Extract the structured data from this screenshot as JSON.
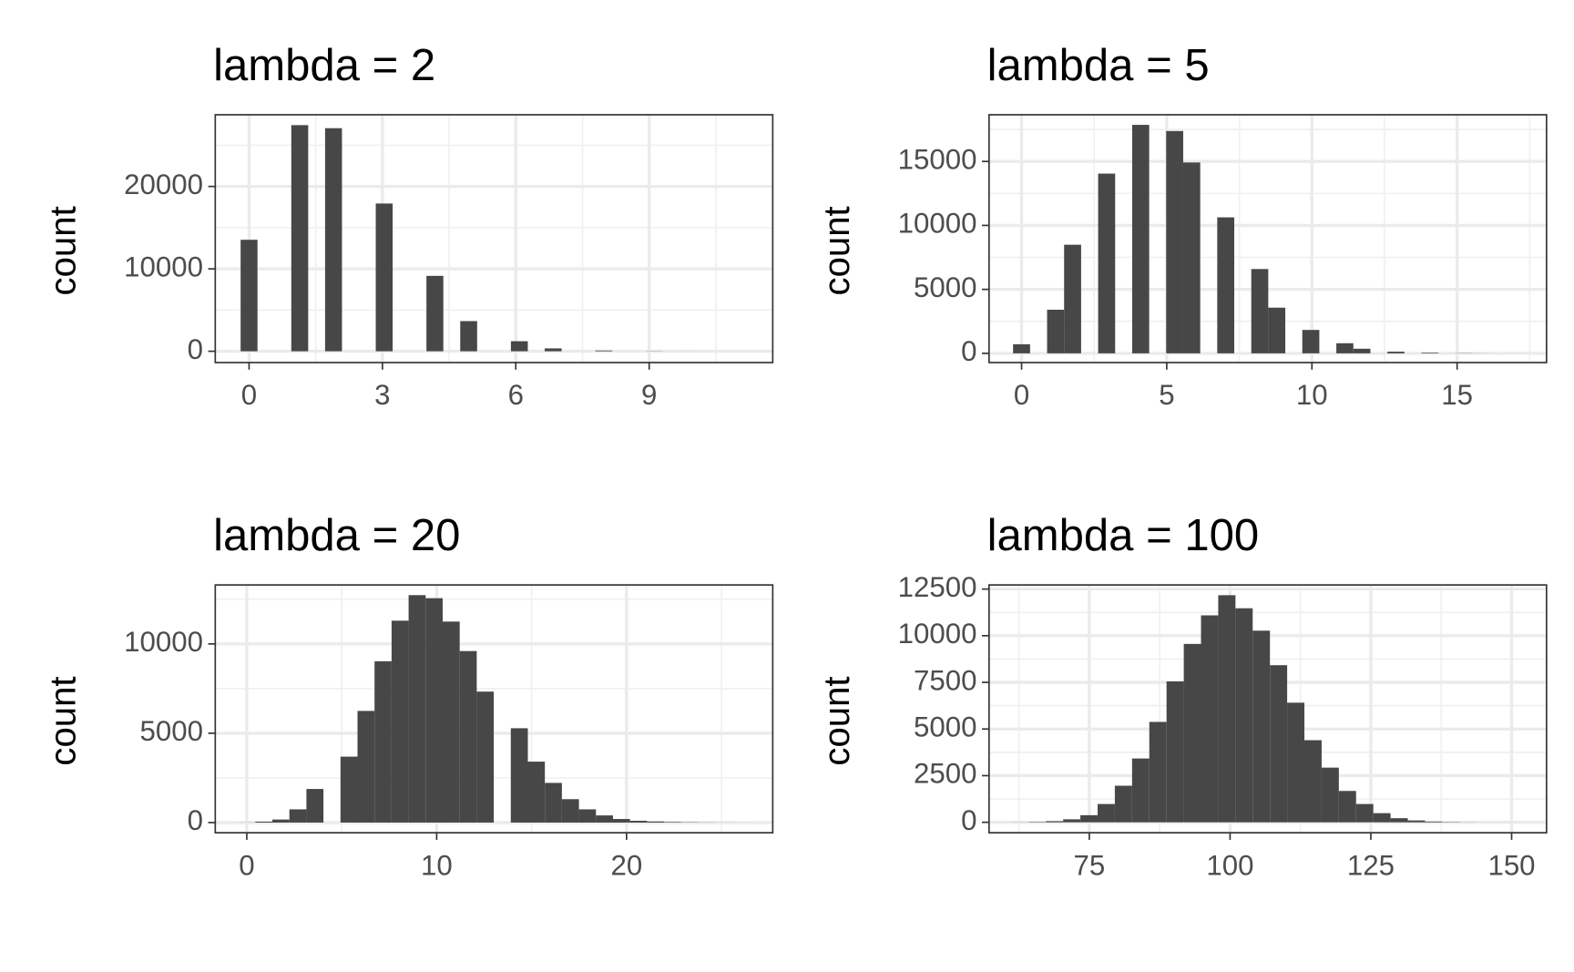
{
  "chart_data": [
    {
      "type": "histogram",
      "title": "lambda = 2",
      "y_label": "count",
      "color": "#474747",
      "grid": true,
      "bins": [
        -0.19,
        0.19,
        0.57,
        0.95,
        1.33,
        1.71,
        2.09,
        2.47,
        2.85,
        3.23,
        3.61,
        3.99,
        4.37,
        4.75,
        5.13,
        5.51,
        5.89,
        6.27,
        6.65,
        7.03,
        7.41,
        7.79,
        8.17,
        8.55,
        8.93,
        9.31,
        9.69,
        10.07,
        10.45,
        10.83,
        11.21
      ],
      "counts": [
        13530,
        0,
        0,
        27440,
        0,
        27070,
        0,
        0,
        17930,
        0,
        0,
        9150,
        0,
        3660,
        0,
        0,
        1220,
        0,
        350,
        0,
        0,
        90,
        0,
        0,
        20,
        0,
        3,
        0,
        0,
        1
      ],
      "xlim": [
        -0.76,
        11.78
      ],
      "xticks": [
        0,
        3,
        6,
        9
      ],
      "x_minor_ticks": [
        1.5,
        4.5,
        7.5,
        10.5
      ],
      "ylim": [
        -1370,
        28700
      ],
      "yticks": [
        0,
        10000,
        20000
      ],
      "y_minor_ticks": [
        5000,
        15000,
        25000
      ]
    },
    {
      "type": "histogram",
      "title": "lambda = 5",
      "y_label": "count",
      "color": "#474747",
      "grid": true,
      "bins": [
        -0.293,
        0.293,
        0.879,
        1.465,
        2.051,
        2.637,
        3.223,
        3.809,
        4.395,
        4.981,
        5.567,
        6.153,
        6.739,
        7.325,
        7.911,
        8.497,
        9.083,
        9.669,
        10.255,
        10.841,
        11.427,
        12.013,
        12.599,
        13.185,
        13.771,
        14.357,
        14.943,
        15.529,
        16.115,
        16.701,
        17.287
      ],
      "counts": [
        710,
        0,
        3410,
        8490,
        0,
        14050,
        0,
        17860,
        0,
        17380,
        14920,
        0,
        10630,
        0,
        6590,
        3570,
        0,
        1830,
        0,
        790,
        360,
        0,
        130,
        0,
        50,
        0,
        15,
        5,
        0,
        1
      ],
      "xlim": [
        -1.12,
        18.08
      ],
      "xticks": [
        0,
        5,
        10,
        15
      ],
      "x_minor_ticks": [
        2.5,
        7.5,
        12.5,
        17.5
      ],
      "ylim": [
        -720,
        18650
      ],
      "yticks": [
        0,
        5000,
        10000,
        15000
      ],
      "y_minor_ticks": [
        2500,
        7500,
        12500,
        17500
      ]
    },
    {
      "type": "histogram",
      "title": "lambda = 20",
      "y_label": "count",
      "color": "#474747",
      "grid": true,
      "bins": [
        -0.448,
        0.449,
        1.346,
        2.243,
        3.14,
        4.037,
        4.934,
        5.831,
        6.728,
        7.625,
        8.522,
        9.419,
        10.316,
        11.213,
        12.11,
        13.007,
        13.904,
        14.801,
        15.698,
        16.595,
        17.492,
        18.389,
        19.286,
        20.183,
        21.08,
        21.977,
        22.874,
        23.771,
        24.668,
        25.565,
        26.462
      ],
      "counts": [
        5,
        50,
        170,
        740,
        1880,
        0,
        3690,
        6250,
        9030,
        11300,
        12730,
        12560,
        11250,
        9600,
        7330,
        0,
        5280,
        3410,
        2220,
        1310,
        740,
        400,
        200,
        100,
        60,
        30,
        15,
        8,
        3,
        1
      ],
      "xlim": [
        -1.66,
        27.7
      ],
      "xticks": [
        0,
        10,
        20
      ],
      "x_minor_ticks": [
        5,
        15,
        25
      ],
      "ylim": [
        -570,
        13300
      ],
      "yticks": [
        0,
        5000,
        10000
      ],
      "y_minor_ticks": [
        2500,
        7500,
        12500
      ]
    },
    {
      "type": "histogram",
      "title": "lambda = 100",
      "y_label": "count",
      "color": "#474747",
      "grid": true,
      "bins": [
        58.12,
        61.18,
        64.24,
        67.3,
        70.36,
        73.42,
        76.48,
        79.54,
        82.6,
        85.66,
        88.72,
        91.78,
        94.84,
        97.9,
        100.96,
        104.02,
        107.08,
        110.14,
        113.2,
        116.26,
        119.32,
        122.38,
        125.44,
        128.5,
        131.56,
        134.62,
        137.68,
        140.74,
        143.8,
        146.86,
        149.92
      ],
      "counts": [
        1,
        5,
        20,
        60,
        160,
        380,
        980,
        1960,
        3420,
        5380,
        7550,
        9560,
        11090,
        12170,
        11470,
        10270,
        8420,
        6410,
        4400,
        2930,
        1680,
        980,
        490,
        220,
        100,
        40,
        15,
        5,
        1,
        1
      ],
      "xlim": [
        57.2,
        156.2
      ],
      "xticks": [
        75,
        100,
        125,
        150
      ],
      "x_minor_ticks": [
        62.5,
        87.5,
        112.5,
        137.5
      ],
      "ylim": [
        -560,
        12720
      ],
      "yticks": [
        0,
        2500,
        5000,
        7500,
        10000,
        12500
      ],
      "y_minor_ticks": [
        1250,
        3750,
        6250,
        8750,
        11250
      ]
    }
  ]
}
